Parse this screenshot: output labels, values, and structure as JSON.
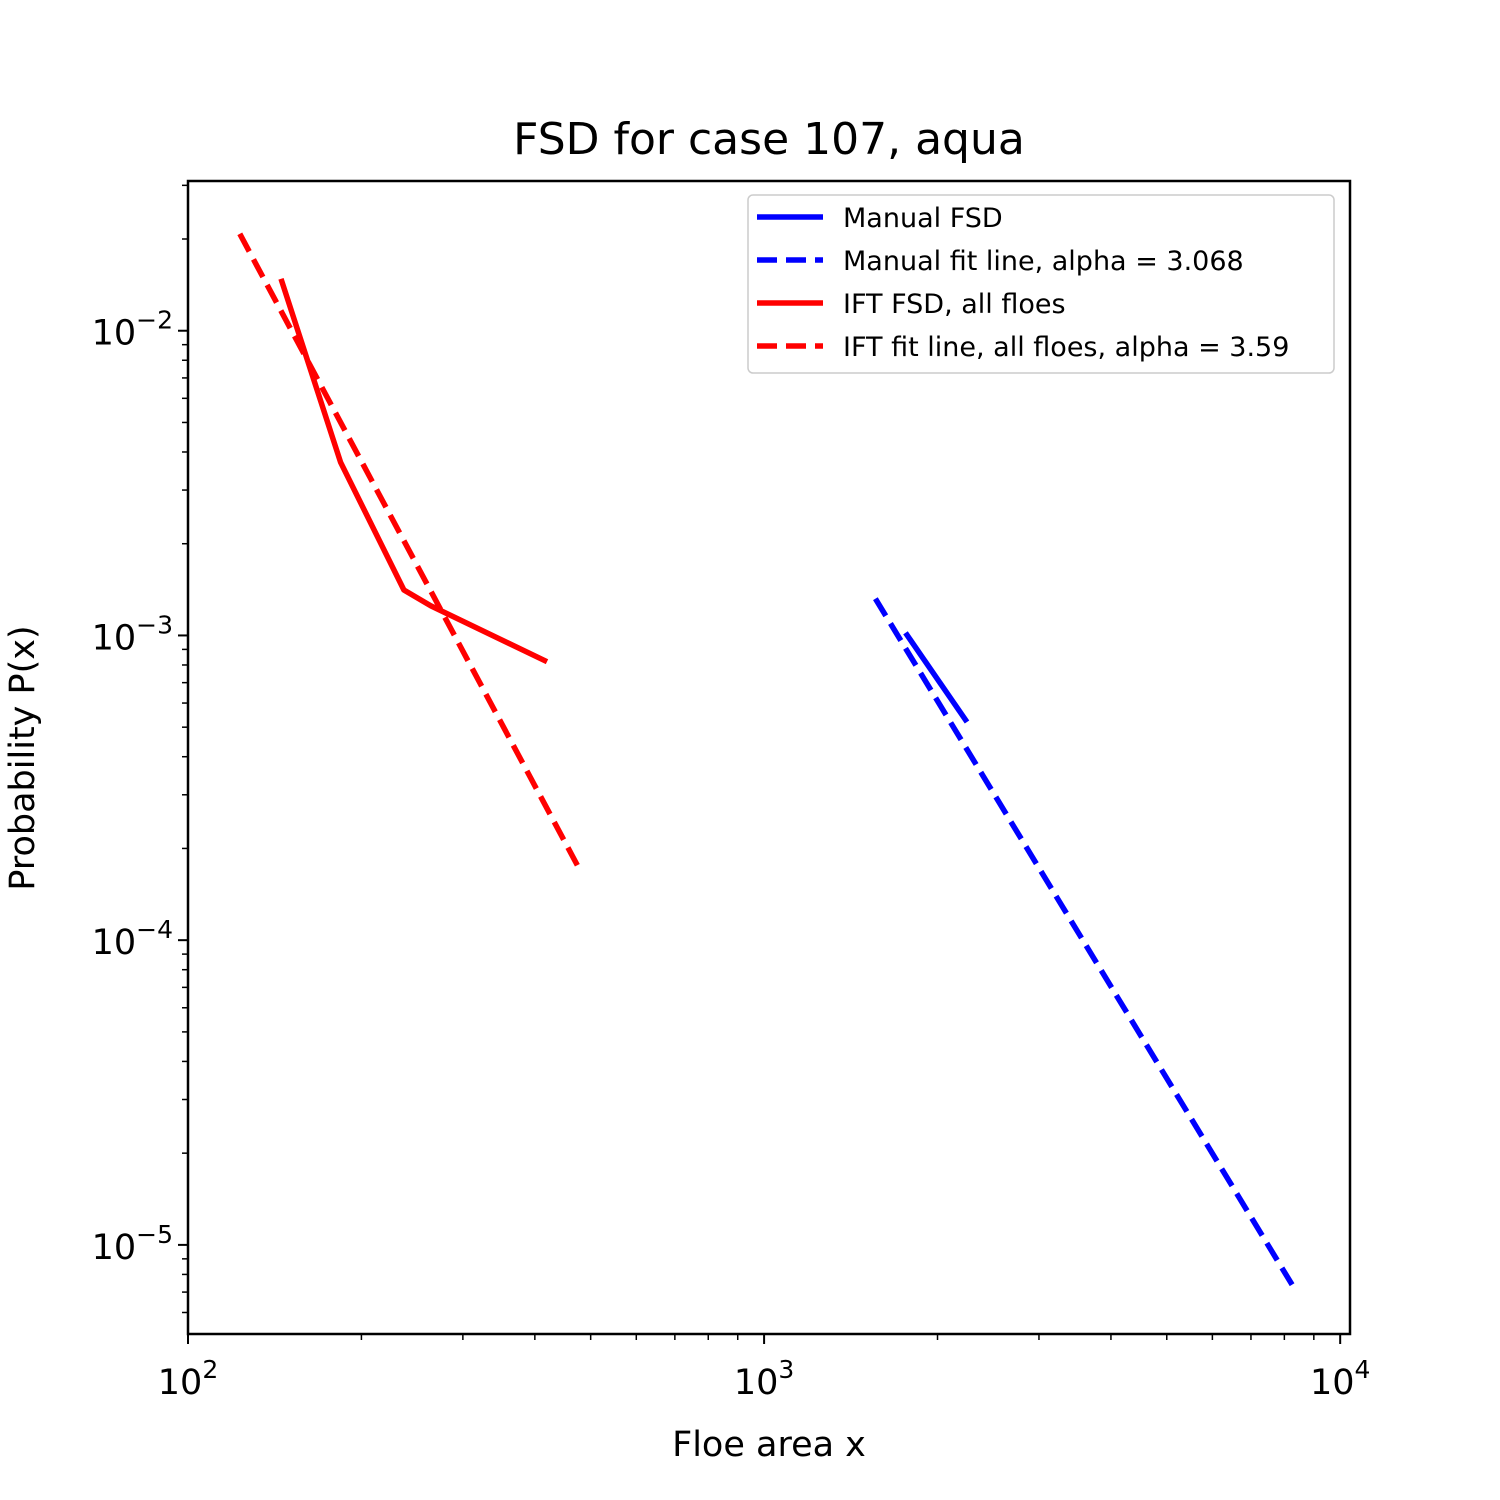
{
  "chart_data": {
    "type": "line",
    "title": "FSD for case 107, aqua",
    "xlabel": "Floe area x",
    "ylabel": "Probability P(x)",
    "xscale": "log",
    "yscale": "log",
    "xlim": [
      100,
      10400
    ],
    "ylim": [
      5.1e-06,
      0.031
    ],
    "x_ticks": [
      {
        "value": 100,
        "base": "10",
        "exp": "2"
      },
      {
        "value": 1000,
        "base": "10",
        "exp": "3"
      },
      {
        "value": 10000,
        "base": "10",
        "exp": "4"
      }
    ],
    "y_ticks": [
      {
        "value": 1e-05,
        "base": "10",
        "exp": "−5"
      },
      {
        "value": 0.0001,
        "base": "10",
        "exp": "−4"
      },
      {
        "value": 0.001,
        "base": "10",
        "exp": "−3"
      },
      {
        "value": 0.01,
        "base": "10",
        "exp": "−2"
      }
    ],
    "grid": false,
    "legend_position": "top-right",
    "series": [
      {
        "name": "Manual FSD",
        "color": "#0000ff",
        "style": "solid",
        "points": [
          [
            1760,
            0.00102
          ],
          [
            2250,
            0.00052
          ]
        ]
      },
      {
        "name": "Manual fit line, alpha = 3.068",
        "color": "#0000ff",
        "style": "dashed",
        "points": [
          [
            1560,
            0.00132
          ],
          [
            8250,
            7.4e-06
          ]
        ]
      },
      {
        "name": "IFT FSD, all floes",
        "color": "#ff0000",
        "style": "solid",
        "points": [
          [
            145,
            0.0148
          ],
          [
            184,
            0.0037
          ],
          [
            237,
            0.00141
          ],
          [
            264,
            0.00125
          ],
          [
            420,
            0.00082
          ]
        ]
      },
      {
        "name": "IFT fit line, all floes, alpha = 3.59",
        "color": "#ff0000",
        "style": "dashed",
        "points": [
          [
            123,
            0.0208
          ],
          [
            475,
            0.000175
          ]
        ]
      }
    ]
  }
}
